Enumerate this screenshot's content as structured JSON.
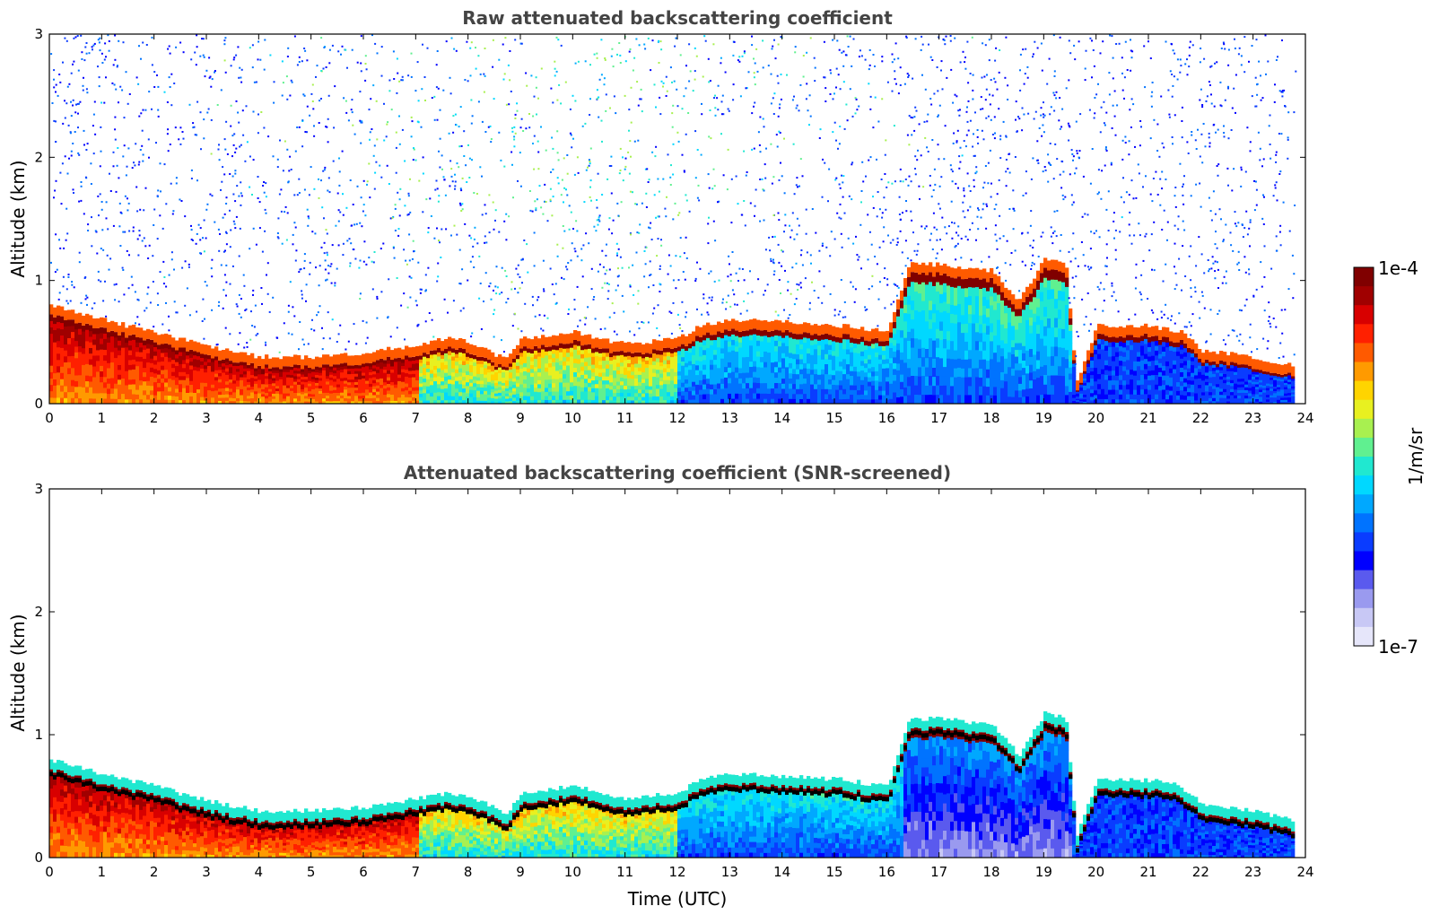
{
  "chart_data": [
    {
      "type": "heatmap",
      "title": "Raw attenuated backscattering coefficient",
      "xlabel": "",
      "ylabel": "Altitude (km)",
      "xlim": [
        0,
        24
      ],
      "ylim": [
        0,
        3
      ],
      "xticks": [
        "0",
        "1",
        "2",
        "3",
        "4",
        "5",
        "6",
        "7",
        "8",
        "9",
        "10",
        "11",
        "12",
        "13",
        "14",
        "15",
        "16",
        "17",
        "18",
        "19",
        "20",
        "21",
        "22",
        "23",
        "24"
      ],
      "yticks": [
        "0",
        "1",
        "2",
        "3"
      ],
      "screened": false,
      "layer_top_km": {
        "time_utc": [
          0,
          1,
          2,
          3,
          4,
          5,
          6,
          7,
          7.6,
          8,
          8.7,
          9,
          10,
          11,
          12,
          12.4,
          13,
          14,
          15,
          16,
          16.4,
          17,
          18,
          18.5,
          19,
          19.4,
          19.6,
          20,
          21,
          21.6,
          22,
          23,
          23.8
        ],
        "altitude_km": [
          0.72,
          0.6,
          0.5,
          0.38,
          0.3,
          0.3,
          0.33,
          0.4,
          0.45,
          0.42,
          0.28,
          0.45,
          0.5,
          0.4,
          0.45,
          0.55,
          0.6,
          0.58,
          0.56,
          0.5,
          1.05,
          1.05,
          1.0,
          0.75,
          1.1,
          1.05,
          0.1,
          0.55,
          0.55,
          0.5,
          0.35,
          0.3,
          0.22
        ]
      }
    },
    {
      "type": "heatmap",
      "title": "Attenuated backscattering coefficient (SNR-screened)",
      "xlabel": "Time (UTC)",
      "ylabel": "Altitude (km)",
      "xlim": [
        0,
        24
      ],
      "ylim": [
        0,
        3
      ],
      "xticks": [
        "0",
        "1",
        "2",
        "3",
        "4",
        "5",
        "6",
        "7",
        "8",
        "9",
        "10",
        "11",
        "12",
        "13",
        "14",
        "15",
        "16",
        "17",
        "18",
        "19",
        "20",
        "21",
        "22",
        "23",
        "24"
      ],
      "yticks": [
        "0",
        "1",
        "2",
        "3"
      ],
      "screened": true,
      "layer_top_km": {
        "time_utc": [
          0,
          1,
          2,
          3,
          4,
          5,
          6,
          7,
          7.6,
          8,
          8.7,
          9,
          10,
          11,
          12,
          12.4,
          13,
          14,
          15,
          16,
          16.4,
          17,
          18,
          18.5,
          19,
          19.4,
          19.6,
          20,
          21,
          21.6,
          22,
          23,
          23.8
        ],
        "altitude_km": [
          0.72,
          0.6,
          0.5,
          0.38,
          0.3,
          0.3,
          0.33,
          0.4,
          0.45,
          0.42,
          0.28,
          0.45,
          0.5,
          0.4,
          0.45,
          0.55,
          0.6,
          0.58,
          0.56,
          0.5,
          1.05,
          1.05,
          1.0,
          0.75,
          1.1,
          1.05,
          0.1,
          0.55,
          0.55,
          0.5,
          0.35,
          0.3,
          0.22
        ]
      }
    }
  ],
  "colorbar": {
    "label": "1/m/sr",
    "max_label": "1e-4",
    "min_label": "1e-7",
    "colors": [
      "#e6e6fa",
      "#c8c8f5",
      "#9a9aef",
      "#5a5aee",
      "#0000ff",
      "#0a3cff",
      "#0073ff",
      "#00a8ff",
      "#00d8ff",
      "#20e8d0",
      "#60f090",
      "#a8f050",
      "#e8f020",
      "#ffd400",
      "#ff9a00",
      "#ff5a00",
      "#ff2000",
      "#d80000",
      "#a00000",
      "#800000"
    ]
  }
}
